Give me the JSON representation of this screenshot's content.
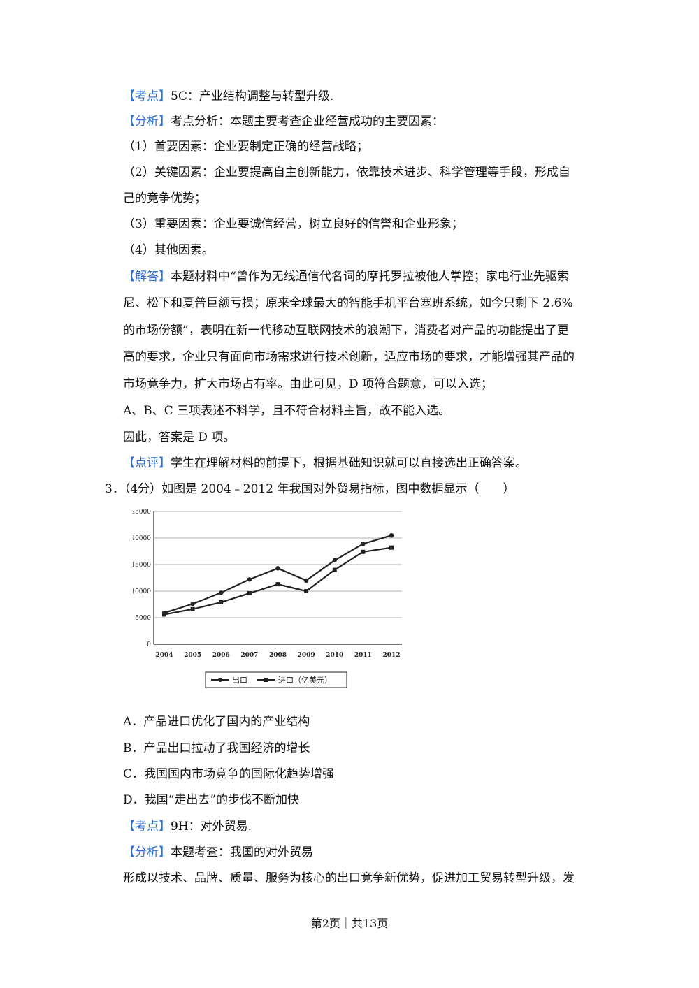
{
  "sections": {
    "kaodian1": {
      "tag": "【考点】",
      "text": "5C：产业结构调整与转型升级."
    },
    "fenxi1": {
      "tag": "【分析】",
      "text": "考点分析：本题主要考查企业经营成功的主要因素："
    },
    "factors": [
      "（1）首要因素：企业要制定正确的经营战略；",
      "（2）关键因素：企业要提高自主创新能力，依靠技术进步、科学管理等手段，形成自",
      "己的竞争优势；",
      "（3）重要因素：企业要诚信经营，树立良好的信誉和企业形象；",
      "（4）其他因素。"
    ],
    "jieda": {
      "tag": "【解答】",
      "first": "本题材料中“曾作为无线通信代名词的摩托罗拉被他人掌控；家电行业先驱索",
      "rest": [
        "尼、松下和夏普巨额亏损；原来全球最大的智能手机平台塞班系统，如今只剩下 2.6%",
        "的市场份额”，表明在新一代移动互联网技术的浪潮下，消费者对产品的功能提出了更",
        "高的要求，企业只有面向市场需求进行技术创新，适应市场的要求，才能增强其产品的",
        "市场竞争力，扩大市场占有率。由此可见，D 项符合题意，可以入选；",
        "A、B、C 三项表述不科学，且不符合材料主旨，故不能入选。",
        "因此，答案是 D 项。"
      ]
    },
    "dianping": {
      "tag": "【点评】",
      "text": "学生在理解材料的前提下，根据基础知识就可以直接选出正确答案。"
    },
    "question3": "3．（4分）如图是 2004﹣2012 年我国对外贸易指标，图中数据显示（　　）",
    "options": [
      "A．产品进口优化了国内的产业结构",
      "B．产品出口拉动了我国经济的增长",
      "C．我国国内市场竞争的国际化趋势增强",
      "D．我国“走出去”的步伐不断加快"
    ],
    "kaodian2": {
      "tag": "【考点】",
      "text": "9H：对外贸易."
    },
    "fenxi2": {
      "tag": "【分析】",
      "text": "本题考查：我国的对外贸易"
    },
    "last_line": "形成以技术、品牌、质量、服务为核心的出口竞争新优势，促进加工贸易转型升级，发"
  },
  "footer": "第2页｜共13页",
  "chart_data": {
    "type": "line",
    "x": [
      "2004",
      "2005",
      "2006",
      "2007",
      "2008",
      "2009",
      "2010",
      "2011",
      "2012"
    ],
    "series": [
      {
        "name": "出口",
        "marker": "circle",
        "values": [
          5900,
          7600,
          9700,
          12200,
          14300,
          12000,
          15800,
          18900,
          20500
        ]
      },
      {
        "name": "进口（亿美元）",
        "marker": "square",
        "values": [
          5600,
          6600,
          7900,
          9600,
          11300,
          10000,
          14000,
          17400,
          18200
        ]
      }
    ],
    "yticks": [
      0,
      5000,
      10000,
      15000,
      20000,
      25000
    ],
    "ylim": [
      0,
      25000
    ],
    "grid": true,
    "legend_position": "bottom",
    "colors": {
      "line": "#222222",
      "grid": "#999999"
    }
  }
}
